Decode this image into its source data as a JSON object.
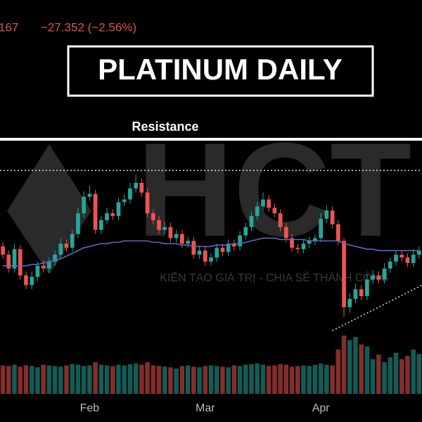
{
  "header": {
    "price_fragment": "167",
    "change": "−27.352 (−2.56%)",
    "title": "PLATINUM DAILY"
  },
  "watermark": {
    "logo": "HCT",
    "slogan": "KIẾN TẠO GIÁ TRỊ - CHIA SẺ THÀNH CÔNG"
  },
  "chart_data": {
    "type": "candlestick",
    "categories": [
      null,
      null,
      null,
      null,
      null,
      null,
      null,
      null,
      null,
      null,
      null,
      null,
      null,
      null,
      null,
      "Feb",
      null,
      null,
      null,
      null,
      null,
      null,
      null,
      null,
      null,
      null,
      null,
      null,
      null,
      null,
      null,
      null,
      null,
      null,
      null,
      "Mar",
      null,
      null,
      null,
      null,
      null,
      null,
      null,
      null,
      null,
      null,
      null,
      null,
      null,
      null,
      null,
      null,
      null,
      null,
      null,
      "Apr",
      null,
      null,
      null,
      null,
      null,
      null,
      null,
      null,
      null,
      null,
      null,
      null,
      null,
      null,
      null,
      null,
      null
    ],
    "open": [
      1006,
      1000,
      990,
      1004,
      985,
      978,
      984,
      992,
      990,
      995,
      1000,
      1008,
      1005,
      1015,
      1030,
      1042,
      1044,
      1018,
      1025,
      1030,
      1028,
      1038,
      1040,
      1048,
      1052,
      1045,
      1030,
      1025,
      1018,
      1020,
      1012,
      1015,
      1008,
      1010,
      1000,
      1003,
      995,
      998,
      1005,
      1002,
      1008,
      1006,
      1014,
      1020,
      1028,
      1035,
      1040,
      1034,
      1030,
      1020,
      1012,
      1005,
      1004,
      1008,
      1010,
      1012,
      1026,
      1032,
      1022,
      1010,
      962,
      968,
      975,
      970,
      982,
      985,
      982,
      990,
      995,
      1000,
      998,
      994,
      1000
    ],
    "high": [
      1009,
      1003,
      1008,
      1007,
      988,
      988,
      995,
      996,
      998,
      1003,
      1012,
      1011,
      1018,
      1034,
      1046,
      1050,
      1047,
      1028,
      1034,
      1033,
      1041,
      1044,
      1052,
      1058,
      1055,
      1048,
      1033,
      1028,
      1024,
      1023,
      1018,
      1018,
      1013,
      1013,
      1006,
      1006,
      1001,
      1008,
      1008,
      1011,
      1011,
      1017,
      1023,
      1031,
      1038,
      1045,
      1043,
      1037,
      1033,
      1023,
      1015,
      1008,
      1011,
      1013,
      1015,
      1030,
      1036,
      1035,
      1025,
      1012,
      972,
      979,
      978,
      986,
      989,
      988,
      994,
      998,
      1003,
      1003,
      1001,
      1004,
      1006
    ],
    "low": [
      997,
      987,
      987,
      982,
      975,
      975,
      981,
      987,
      987,
      992,
      997,
      1002,
      1002,
      1012,
      1027,
      1039,
      1015,
      1015,
      1022,
      1025,
      1025,
      1035,
      1037,
      1045,
      1042,
      1027,
      1022,
      1015,
      1015,
      1009,
      1009,
      1005,
      1005,
      997,
      997,
      992,
      992,
      995,
      999,
      999,
      1003,
      1003,
      1011,
      1017,
      1025,
      1032,
      1031,
      1027,
      1017,
      1009,
      1002,
      1001,
      1001,
      1005,
      1007,
      1009,
      1023,
      1019,
      1007,
      955,
      958,
      965,
      967,
      967,
      979,
      979,
      979,
      987,
      992,
      995,
      991,
      991,
      997
    ],
    "close": [
      1000,
      990,
      1004,
      985,
      978,
      984,
      992,
      990,
      995,
      1000,
      1008,
      1005,
      1015,
      1030,
      1042,
      1044,
      1018,
      1025,
      1030,
      1028,
      1038,
      1040,
      1048,
      1052,
      1045,
      1030,
      1025,
      1018,
      1020,
      1012,
      1015,
      1008,
      1010,
      1000,
      1003,
      995,
      998,
      1005,
      1002,
      1008,
      1006,
      1014,
      1020,
      1028,
      1035,
      1040,
      1034,
      1030,
      1020,
      1012,
      1005,
      1004,
      1008,
      1010,
      1012,
      1026,
      1032,
      1022,
      1010,
      962,
      968,
      975,
      970,
      982,
      985,
      982,
      990,
      995,
      1000,
      998,
      994,
      1000,
      1003
    ],
    "moving_average": [
      992,
      992,
      992,
      992,
      992,
      993,
      993,
      994,
      995,
      996,
      997,
      999,
      1001,
      1003,
      1005,
      1006,
      1007,
      1008,
      1008,
      1009,
      1009,
      1010,
      1010,
      1010,
      1010,
      1010,
      1009,
      1009,
      1008,
      1008,
      1008,
      1007,
      1007,
      1006,
      1006,
      1006,
      1006,
      1007,
      1007,
      1007,
      1008,
      1008,
      1009,
      1010,
      1011,
      1012,
      1012,
      1012,
      1011,
      1011,
      1011,
      1011,
      1011,
      1010,
      1010,
      1010,
      1010,
      1010,
      1010,
      1008,
      1007,
      1006,
      1005,
      1004,
      1004,
      1003,
      1003,
      1003,
      1003,
      1003,
      1003,
      1003,
      1003
    ],
    "volume": [
      45,
      44,
      46,
      43,
      45,
      44,
      42,
      46,
      45,
      44,
      43,
      45,
      47,
      46,
      44,
      45,
      50,
      46,
      45,
      44,
      46,
      45,
      47,
      48,
      46,
      50,
      45,
      44,
      43,
      42,
      40,
      44,
      45,
      43,
      42,
      44,
      45,
      44,
      43,
      42,
      45,
      44,
      46,
      47,
      48,
      46,
      44,
      45,
      47,
      46,
      43,
      44,
      45,
      44,
      46,
      48,
      46,
      45,
      70,
      92,
      85,
      90,
      78,
      75,
      55,
      62,
      50,
      58,
      65,
      55,
      60,
      70,
      63
    ],
    "ylim": [
      940,
      1080
    ],
    "volume_ylim": [
      0,
      100
    ],
    "resistance": {
      "label": "Resistance",
      "value": 1061
    },
    "trendline": {
      "x": [
        57,
        72.5
      ],
      "y": [
        945,
        978
      ]
    },
    "up_color": "#26a69a",
    "down_color": "#ef5350",
    "ma_color": "#5c6bc0"
  }
}
